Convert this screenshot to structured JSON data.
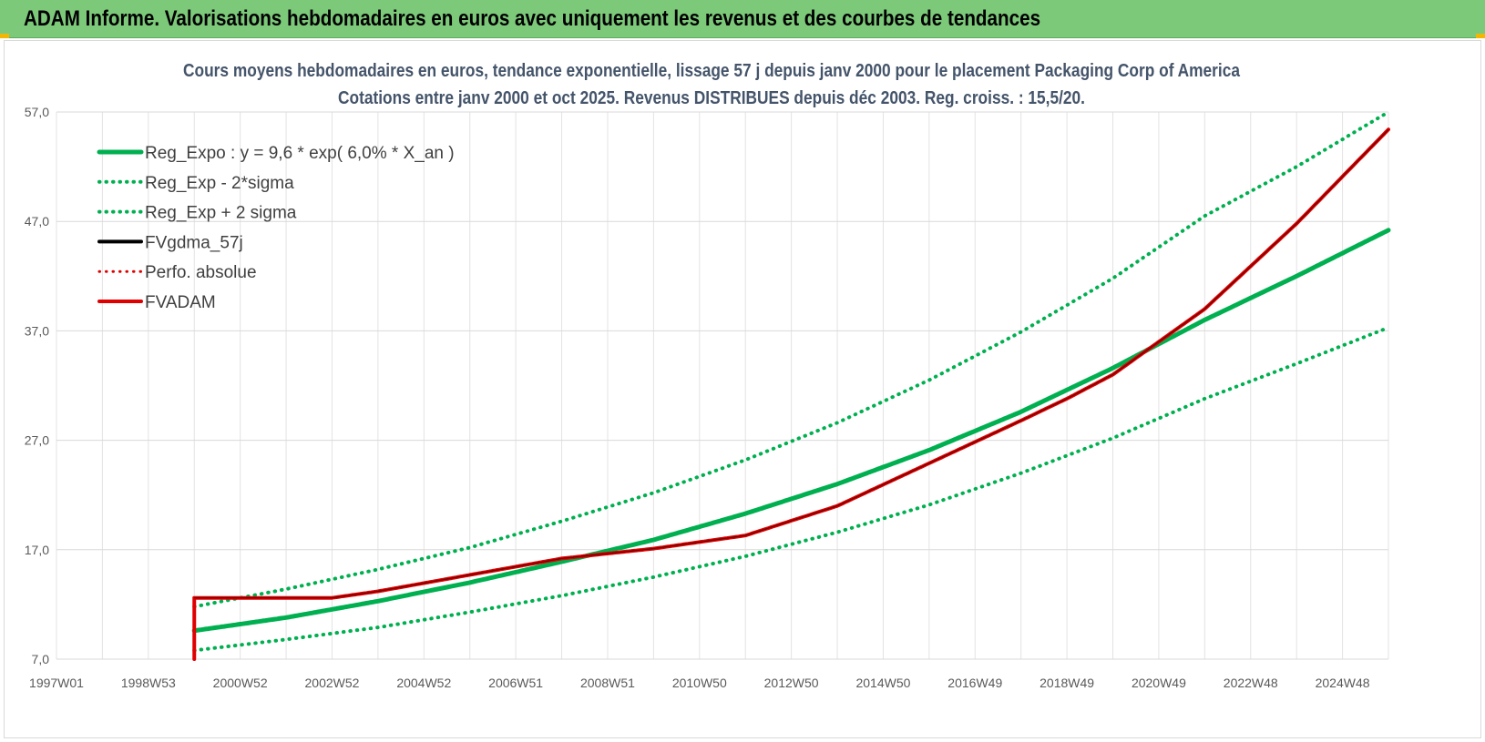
{
  "header": {
    "title": "ADAM Informe. Valorisations hebdomadaires en euros avec uniquement les revenus et des courbes de tendances"
  },
  "colors": {
    "header_bg": "#7dc97a",
    "reg_green": "#00b050",
    "adam_red": "#e00000",
    "black": "#000000",
    "grid": "#e0e0e0"
  },
  "chart_data": {
    "type": "line",
    "title_lines": [
      "Cours moyens hebdomadaires en euros, tendance exponentielle, lissage 57 j depuis janv 2000 pour le placement Packaging Corp of America",
      "Cotations entre janv 2000 et oct 2025. Revenus DISTRIBUES depuis déc 2003. Reg. croiss. : 15,5/20."
    ],
    "x_axis": {
      "start_year": 1997.0,
      "end_year": 2026.0,
      "ticks": [
        {
          "label": "1997W01",
          "year": 1997.0
        },
        {
          "label": "1998W53",
          "year": 1999.0
        },
        {
          "label": "2000W52",
          "year": 2001.0
        },
        {
          "label": "2002W52",
          "year": 2003.0
        },
        {
          "label": "2004W52",
          "year": 2005.0
        },
        {
          "label": "2006W51",
          "year": 2007.0
        },
        {
          "label": "2008W51",
          "year": 2009.0
        },
        {
          "label": "2010W50",
          "year": 2011.0
        },
        {
          "label": "2012W50",
          "year": 2013.0
        },
        {
          "label": "2014W50",
          "year": 2015.0
        },
        {
          "label": "2016W49",
          "year": 2017.0
        },
        {
          "label": "2018W49",
          "year": 2019.0
        },
        {
          "label": "2020W49",
          "year": 2021.0
        },
        {
          "label": "2022W48",
          "year": 2023.0
        },
        {
          "label": "2024W48",
          "year": 2025.0
        }
      ]
    },
    "y_axis": {
      "min": 7.0,
      "max": 57.0,
      "ticks": [
        "7,0",
        "17,0",
        "27,0",
        "37,0",
        "47,0",
        "57,0"
      ]
    },
    "grid": true,
    "legend_position": "top-left",
    "series": [
      {
        "name": "Reg_Expo : y = 9,6 * exp( 6,0% *  X_an )",
        "color": "#00b050",
        "style": "solid",
        "x": [
          2000.0,
          2002.0,
          2004.0,
          2006.0,
          2008.0,
          2010.0,
          2012.0,
          2014.0,
          2016.0,
          2018.0,
          2020.0,
          2022.0,
          2024.0,
          2026.0
        ],
        "y": [
          9.6,
          10.8,
          12.3,
          14.0,
          15.9,
          17.9,
          20.3,
          23.0,
          26.1,
          29.6,
          33.6,
          38.0,
          42.0,
          46.2
        ]
      },
      {
        "name": "Reg_Exp - 2*sigma",
        "color": "#00b050",
        "style": "dotted",
        "x": [
          2000.0,
          2002.0,
          2004.0,
          2006.0,
          2008.0,
          2010.0,
          2012.0,
          2014.0,
          2016.0,
          2018.0,
          2020.0,
          2022.0,
          2024.0,
          2026.0
        ],
        "y": [
          7.8,
          8.8,
          9.9,
          11.3,
          12.8,
          14.5,
          16.4,
          18.6,
          21.1,
          24.0,
          27.2,
          30.8,
          34.0,
          37.3
        ]
      },
      {
        "name": "Reg_Exp + 2 sigma",
        "color": "#00b050",
        "style": "dotted",
        "x": [
          2000.0,
          2002.0,
          2004.0,
          2006.0,
          2008.0,
          2010.0,
          2012.0,
          2014.0,
          2016.0,
          2018.0,
          2020.0,
          2022.0,
          2024.0,
          2026.0
        ],
        "y": [
          11.8,
          13.4,
          15.2,
          17.2,
          19.6,
          22.2,
          25.2,
          28.6,
          32.5,
          36.9,
          41.8,
          47.5,
          52.0,
          57.0
        ]
      },
      {
        "name": "FVgdma_57j",
        "color": "#000000",
        "style": "solid",
        "x": [
          2000.0,
          2003.0,
          2004.0,
          2006.0,
          2008.0,
          2010.0,
          2012.0,
          2014.0,
          2016.0,
          2018.0,
          2019.0,
          2020.0,
          2022.0,
          2024.0,
          2026.0
        ],
        "y": [
          12.6,
          12.6,
          13.2,
          14.7,
          16.2,
          17.1,
          18.3,
          21.0,
          24.9,
          28.8,
          30.8,
          33.0,
          39.0,
          46.8,
          55.4
        ]
      },
      {
        "name": "Perfo. absolue",
        "color": "#e00000",
        "style": "dotted",
        "x": [],
        "y": []
      },
      {
        "name": "FVADAM",
        "color": "#e00000",
        "style": "solid",
        "x": [
          2000.0,
          2000.0,
          2003.0,
          2004.0,
          2006.0,
          2008.0,
          2010.0,
          2012.0,
          2014.0,
          2016.0,
          2018.0,
          2019.0,
          2020.0,
          2022.0,
          2024.0,
          2026.0
        ],
        "y": [
          7.0,
          12.6,
          12.6,
          13.2,
          14.7,
          16.2,
          17.1,
          18.3,
          21.0,
          24.9,
          28.8,
          30.8,
          33.0,
          39.0,
          46.8,
          55.4
        ]
      }
    ]
  }
}
